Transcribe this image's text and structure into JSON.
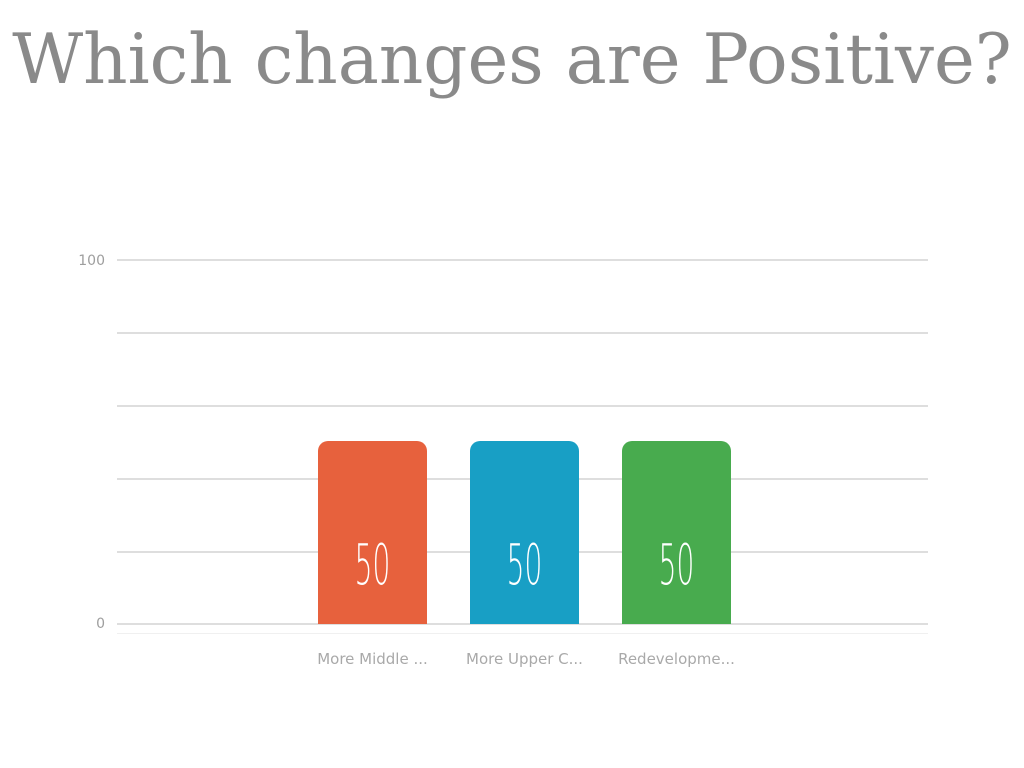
{
  "slide": {
    "title": "Which changes are Positive?",
    "background": "#ffffff",
    "title_color": "#8a8a8a"
  },
  "chart_data": {
    "type": "bar",
    "title": "Which changes are Positive?",
    "categories": [
      "More Middle ...",
      "More Upper C...",
      "Redevelopme..."
    ],
    "values": [
      50,
      50,
      50
    ],
    "value_labels": [
      "50",
      "50",
      "50"
    ],
    "bar_colors": [
      "#e7613d",
      "#189fc5",
      "#48ab4e"
    ],
    "xlabel": "",
    "ylabel": "",
    "ylim": [
      0,
      100
    ],
    "ytick_labels": [
      "100",
      "0"
    ],
    "gridline_values": [
      100,
      80,
      60,
      40,
      20,
      0
    ],
    "grid": "horizontal",
    "legend": "none",
    "gridline_color": "#dedede",
    "axis_tick_color": "#9e9e9e",
    "category_label_color": "#a9a9a9",
    "value_label_color": "#ffffff"
  }
}
